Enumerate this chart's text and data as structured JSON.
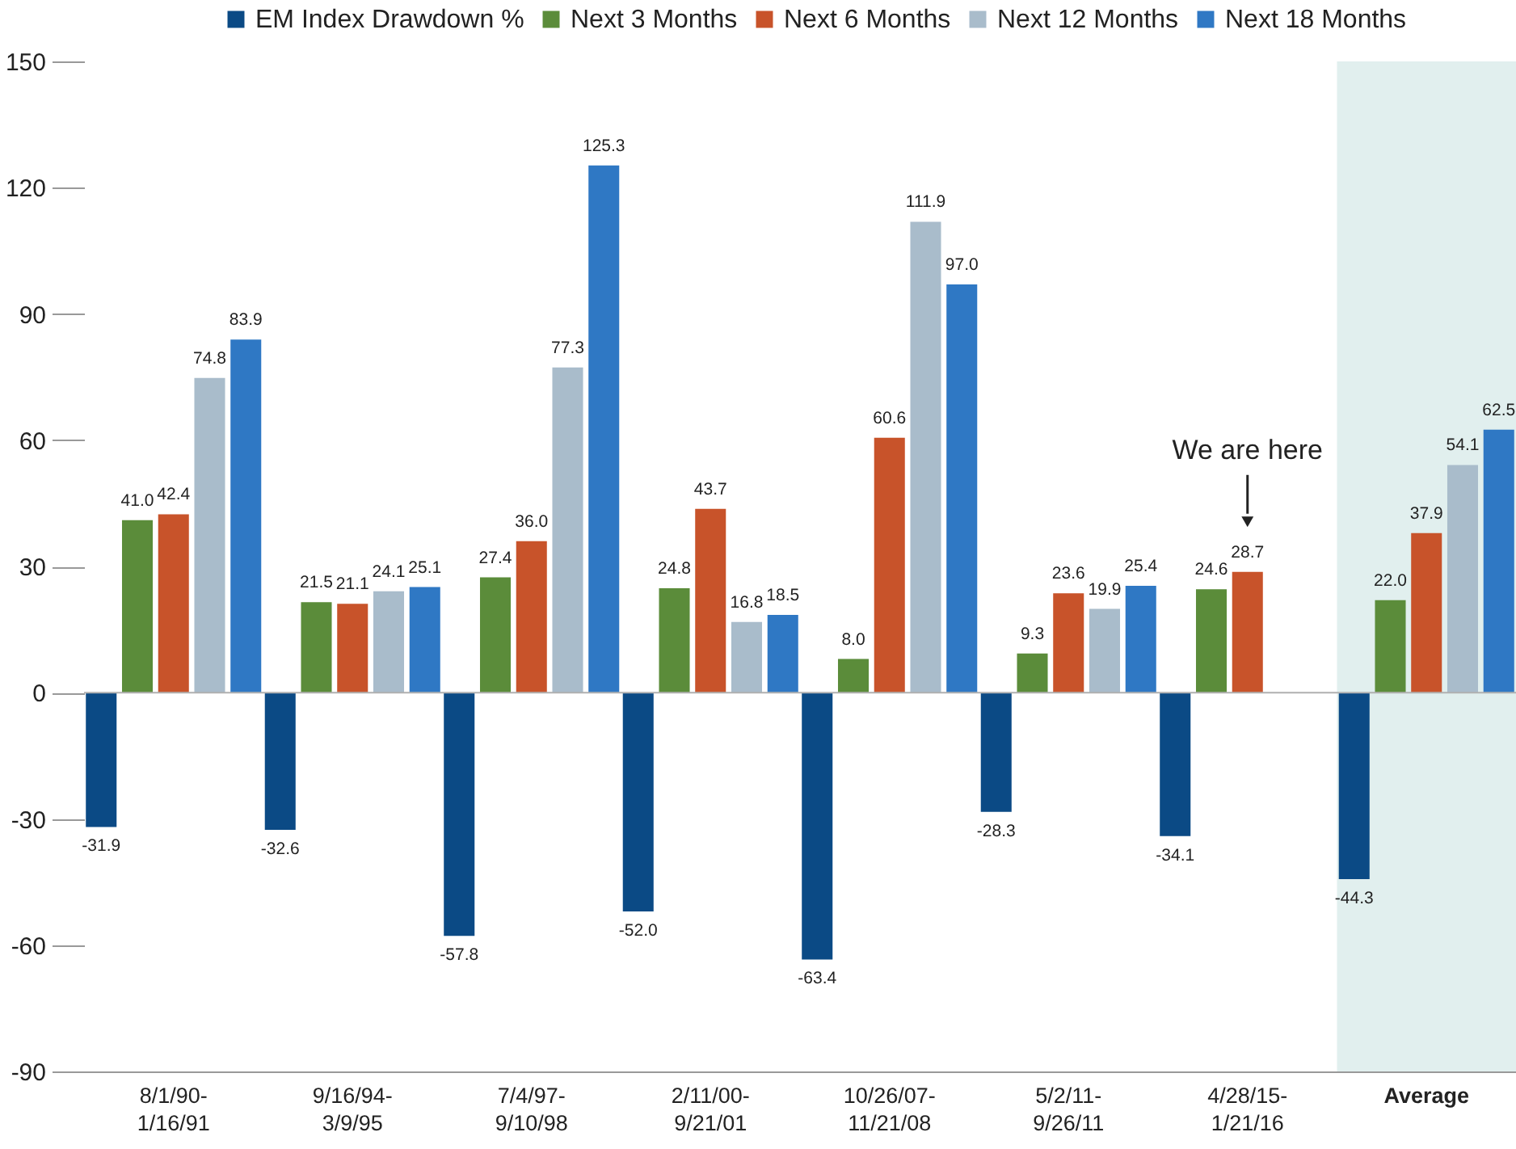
{
  "chart_data": {
    "type": "bar",
    "categories": [
      "8/1/90-1/16/91",
      "9/16/94-3/9/95",
      "7/4/97-9/10/98",
      "2/11/00-9/21/01",
      "10/26/07-11/21/08",
      "5/2/11-9/26/11",
      "4/28/15-1/21/16",
      "Average"
    ],
    "series": [
      {
        "name": "EM Index Drawdown %",
        "color": "#0b4a85",
        "values": [
          -31.9,
          -32.6,
          -57.8,
          -52.0,
          -63.4,
          -28.3,
          -34.1,
          -44.3
        ],
        "value_labels": [
          "-31.9",
          "-32.6",
          "-57.8",
          "-52.0",
          "-63.4",
          "-28.3",
          "-34.1",
          "-44.3"
        ]
      },
      {
        "name": "Next 3 Months",
        "color": "#5b8c3a",
        "values": [
          41.0,
          21.5,
          27.4,
          24.8,
          8.0,
          9.3,
          24.6,
          22.0
        ],
        "value_labels": [
          "41.0",
          "21.5",
          "27.4",
          "24.8",
          "8.0",
          "9.3",
          "24.6",
          "22.0"
        ]
      },
      {
        "name": "Next 6 Months",
        "color": "#c8532a",
        "values": [
          42.4,
          21.1,
          36.0,
          43.7,
          60.6,
          23.6,
          28.7,
          37.9
        ],
        "value_labels": [
          "42.4",
          "21.1",
          "36.0",
          "43.7",
          "60.6",
          "23.6",
          "28.7",
          "37.9"
        ]
      },
      {
        "name": "Next 12 Months",
        "color": "#a9bccb",
        "values": [
          74.8,
          24.1,
          77.3,
          16.8,
          111.9,
          19.9,
          null,
          54.1
        ],
        "value_labels": [
          "74.8",
          "24.1",
          "77.3",
          "16.8",
          "111.9",
          "19.9",
          null,
          "54.1"
        ]
      },
      {
        "name": "Next 18 Months",
        "color": "#2f78c4",
        "values": [
          83.9,
          25.1,
          125.3,
          18.5,
          97.0,
          25.4,
          null,
          62.5
        ],
        "value_labels": [
          "83.9",
          "25.1",
          "125.3",
          "18.5",
          "97.0",
          "25.4",
          null,
          "62.5"
        ]
      }
    ],
    "ylim": [
      -90,
      150
    ],
    "yticks": [
      -90,
      -60,
      -30,
      0,
      30,
      60,
      90,
      120,
      150
    ],
    "legend": "top right",
    "ref_lines": [
      {
        "axis": "y",
        "value": 0,
        "color": "#b0b0b0"
      }
    ],
    "bands": [
      {
        "axis": "x",
        "from": "Average",
        "to": "Average",
        "color": "#e1efee"
      }
    ],
    "annotations": [
      "We are here"
    ]
  }
}
